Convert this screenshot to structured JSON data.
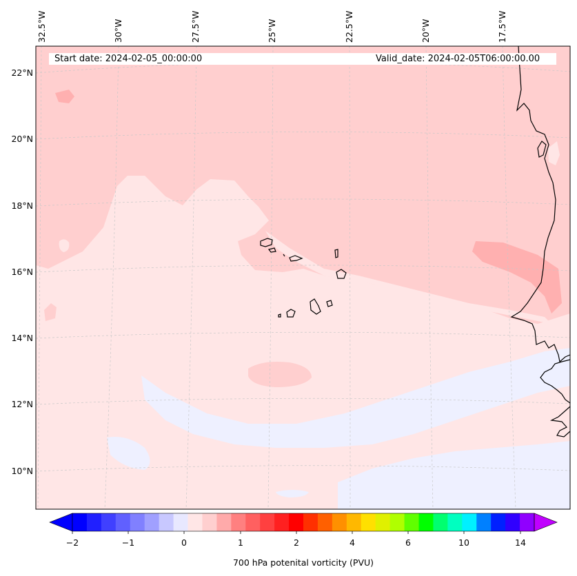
{
  "header": {
    "start_date": "Start date: 2024-02-05_00:00:00",
    "valid_date": "Valid_date: 2024-02-05T06:00:00.00"
  },
  "map": {
    "lon_labels": [
      "32.5°W",
      "30°W",
      "27.5°W",
      "25°W",
      "22.5°W",
      "20°W",
      "17.5°W"
    ],
    "lat_labels": [
      "22°N",
      "20°N",
      "18°N",
      "16°N",
      "14°N",
      "12°N",
      "10°N"
    ],
    "colors": {
      "land_line": "#000000",
      "grid": "#c8c8c8",
      "pv_0_to_0_25": "#ffe6e6",
      "pv_0_25_to_0_5": "#ffcfcf",
      "pv_0_5_to_0_75": "#ffb0b0",
      "pv_neg": "#eef0ff"
    }
  },
  "colorbar": {
    "label": "700 hPa potenital vorticity (PVU)",
    "tick_labels": [
      "−2",
      "−1",
      "0",
      "1",
      "2",
      "4",
      "6",
      "10",
      "14"
    ],
    "colors": [
      "#0000ff",
      "#2020ff",
      "#4040ff",
      "#6060ff",
      "#8080ff",
      "#a0a0ff",
      "#c8c8ff",
      "#e8e8ff",
      "#ffe6e6",
      "#ffcfcf",
      "#ffaaaa",
      "#ff8080",
      "#ff6060",
      "#ff4040",
      "#ff2020",
      "#ff0000",
      "#ff3000",
      "#ff6000",
      "#ff9000",
      "#ffb800",
      "#ffe000",
      "#e0f000",
      "#b0ff00",
      "#60ff00",
      "#00ff00",
      "#00ff70",
      "#00ffc0",
      "#00f0ff",
      "#0080ff",
      "#0020ff",
      "#3000ff",
      "#9000ff"
    ],
    "extend_low_color": "#0000ff",
    "extend_high_color": "#c000ff"
  }
}
